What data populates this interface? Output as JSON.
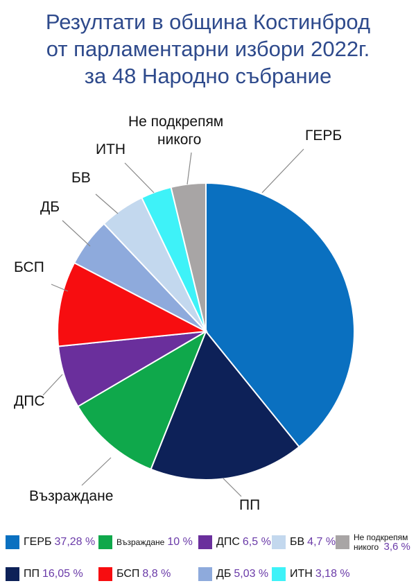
{
  "title_lines": [
    "Резултати в община Костинброд",
    "от парламентарни избори 2022г.",
    "за 48 Народно събрание"
  ],
  "chart_data": {
    "type": "pie",
    "title": "Резултати в община Костинброд от парламентарни избори 2022г. за 48 Народно събрание",
    "slices": [
      {
        "label": "ГЕРБ",
        "value": 37.28,
        "pct_text": "37,28 %",
        "color": "#0a70c0"
      },
      {
        "label": "ПП",
        "value": 16.05,
        "pct_text": "16,05 %",
        "color": "#0d2158"
      },
      {
        "label": "Възраждане",
        "value": 10,
        "pct_text": "10 %",
        "color": "#0fa84b"
      },
      {
        "label": "ДПС",
        "value": 6.5,
        "pct_text": "6,5 %",
        "color": "#6a2f9c"
      },
      {
        "label": "БСП",
        "value": 8.8,
        "pct_text": "8,8 %",
        "color": "#f70d10"
      },
      {
        "label": "ДБ",
        "value": 5.03,
        "pct_text": "5,03 %",
        "color": "#8eaadc"
      },
      {
        "label": "БВ",
        "value": 4.7,
        "pct_text": "4,7 %",
        "color": "#c3d8ee"
      },
      {
        "label": "ИТН",
        "value": 3.18,
        "pct_text": "3,18 %",
        "color": "#3ef2f8"
      },
      {
        "label": "Не подкрепям никого",
        "label_lines": [
          "Не подкрепям",
          "никого"
        ],
        "value": 3.6,
        "pct_text": "3,6 %",
        "color": "#a8a5a5"
      }
    ]
  },
  "legend": {
    "row1": [
      {
        "name": "ГЕРБ",
        "pct": "37,28 %",
        "color": "#0a70c0"
      },
      {
        "name": "Възраждане",
        "pct": "10 %",
        "color": "#0fa84b"
      },
      {
        "name": "ДПС",
        "pct": "6,5 %",
        "color": "#6a2f9c"
      },
      {
        "name": "БВ",
        "pct": "4,7 %",
        "color": "#c3d8ee"
      },
      {
        "name_lines": [
          "Не подкрепям",
          "никого"
        ],
        "pct": "3,6 %",
        "color": "#a8a5a5"
      }
    ],
    "row2": [
      {
        "name": "ПП",
        "pct": "16,05 %",
        "color": "#0d2158"
      },
      {
        "name": "БСП",
        "pct": "8,8 %",
        "color": "#f70d10"
      },
      {
        "name": "ДБ",
        "pct": "5,03 %",
        "color": "#8eaadc"
      },
      {
        "name": "ИТН",
        "pct": "3,18 %",
        "color": "#3ef2f8"
      }
    ]
  }
}
